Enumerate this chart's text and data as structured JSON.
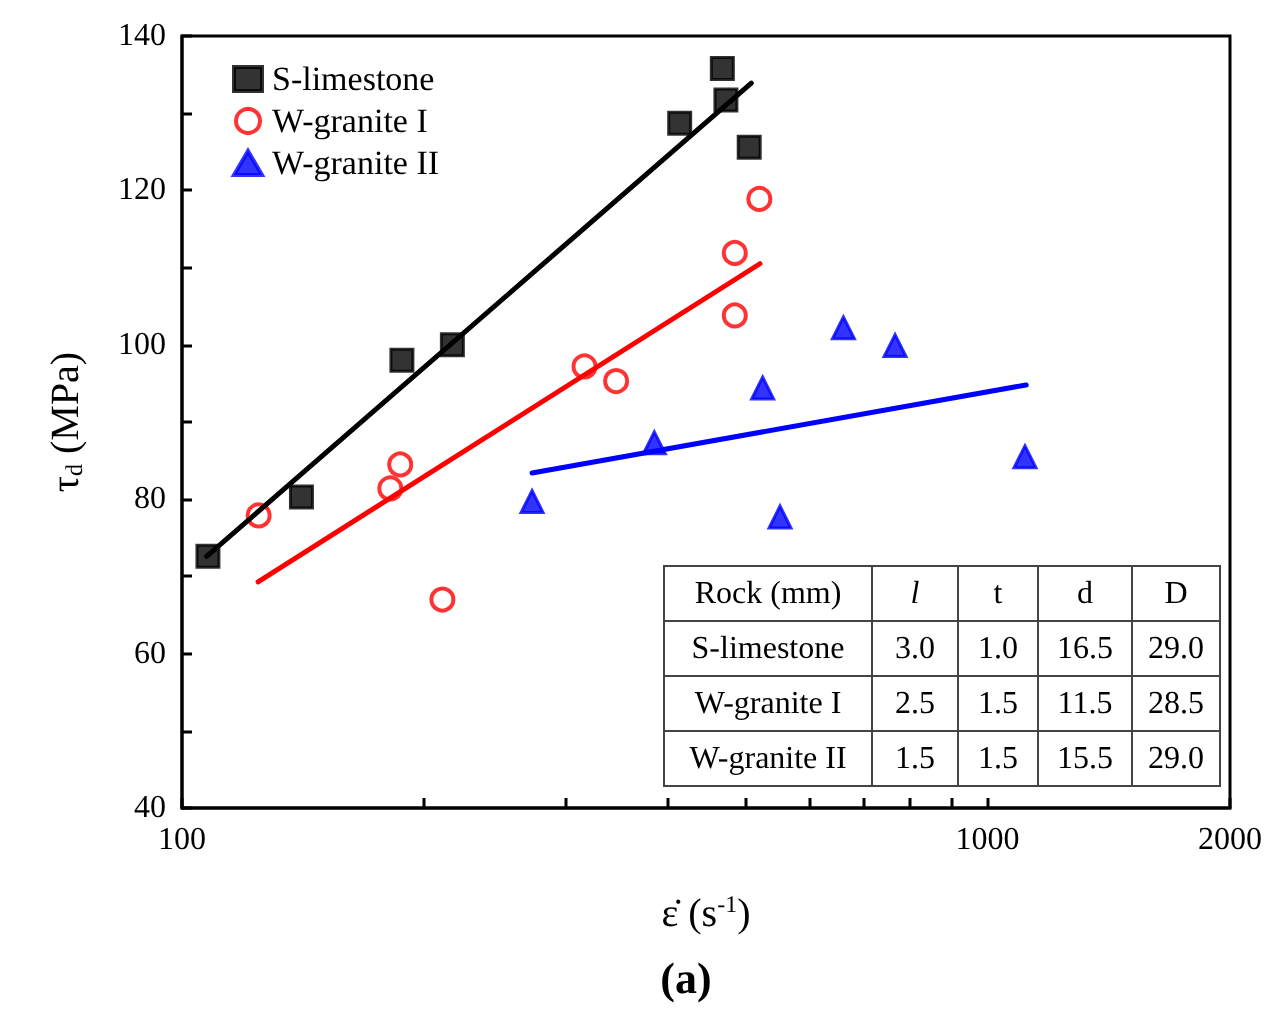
{
  "chart_data": {
    "type": "scatter",
    "xlabel": "ε̇ (s$^{-1}$)",
    "ylabel": "τ$_{d}$ (MPa)",
    "log": "x",
    "xlim": [
      100,
      2000
    ],
    "ylim": [
      40,
      140
    ],
    "xticks": [
      100,
      {
        "value": 200,
        "label": null
      },
      {
        "value": 300,
        "label": null
      },
      {
        "value": 400,
        "label": null
      },
      {
        "value": 500,
        "label": null
      },
      {
        "value": 600,
        "label": null
      },
      {
        "value": 700,
        "label": null
      },
      {
        "value": 800,
        "label": null
      },
      {
        "value": 900,
        "label": null
      },
      1000,
      2000
    ],
    "yticks": [
      40,
      {
        "value": 50,
        "label": null
      },
      60,
      {
        "value": 70,
        "label": null
      },
      80,
      {
        "value": 90,
        "label": null
      },
      100,
      {
        "value": 110,
        "label": null
      },
      120,
      {
        "value": 130,
        "label": null
      },
      140
    ],
    "grid": false,
    "legend": "top left",
    "series": [
      {
        "name": "S-limestone",
        "color": "#000000",
        "marker": "square",
        "x": [
          107.7,
          140.7,
          187.5,
          216.6,
          414.8,
          468.6,
          473.4,
          506
        ],
        "values": [
          72.6,
          80.3,
          98.0,
          100.0,
          128.7,
          135.8,
          131.7,
          125.6
        ]
      },
      {
        "name": "W-granite I",
        "color": "#ff0000",
        "marker": "circle",
        "x": [
          124.5,
          181.4,
          186.6,
          210.5,
          316,
          345.9,
          485.6,
          485.6,
          520.9
        ],
        "values": [
          77.9,
          81.4,
          84.5,
          67.0,
          97.2,
          95.3,
          103.8,
          111.9,
          118.9
        ]
      },
      {
        "name": "W-granite II",
        "color": "#0000ff",
        "marker": "triangle",
        "x": [
          272,
          385.8,
          525.8,
          552.6,
          662.4,
          767.8,
          1113
        ],
        "values": [
          79.7,
          87.3,
          94.4,
          77.7,
          102.2,
          99.9,
          85.5
        ]
      },
      {
        "type": "line",
        "color": "#000000",
        "marker": "none",
        "x": [
          107.3,
          509
        ],
        "values": [
          72.6,
          133.9
        ]
      },
      {
        "type": "line",
        "color": "#ff0000",
        "marker": "none",
        "x": [
          124.3,
          521.7
        ],
        "values": [
          69.3,
          110.5
        ]
      },
      {
        "type": "line",
        "color": "#0000ff",
        "marker": "none",
        "x": [
          272,
          1117
        ],
        "values": [
          83.4,
          94.8
        ]
      }
    ],
    "annotations": [
      "Rock (mm)",
      "l",
      "t",
      "d",
      "D",
      "S-limestone",
      "3.0",
      "1.0",
      "16.5",
      "29.0",
      "W-granite I",
      "2.5",
      "1.5",
      "11.5",
      "28.5",
      "W-granite II",
      "1.5",
      "1.5",
      "15.5",
      "29.0",
      "(a)"
    ]
  }
}
